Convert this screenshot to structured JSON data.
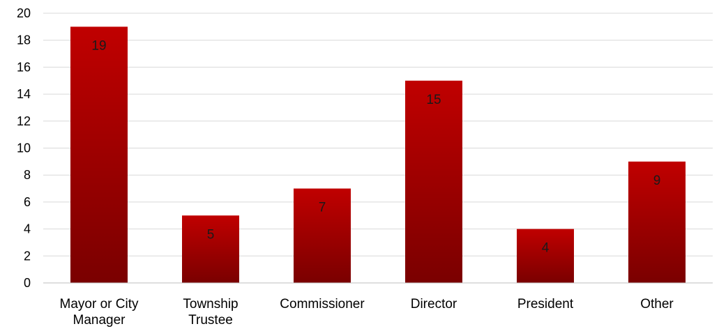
{
  "chart_data": {
    "type": "bar",
    "categories": [
      [
        "Mayor or City",
        "Manager"
      ],
      [
        "Township",
        "Trustee"
      ],
      [
        "Commissioner"
      ],
      [
        "Director"
      ],
      [
        "President"
      ],
      [
        "Other"
      ]
    ],
    "values": [
      19,
      5,
      7,
      15,
      4,
      9
    ],
    "ylim": [
      0,
      20
    ],
    "yticks": [
      0,
      2,
      4,
      6,
      8,
      10,
      12,
      14,
      16,
      18,
      20
    ],
    "grid": true,
    "legend": "none",
    "data_labels": true,
    "bar_color_top": "#c00000",
    "bar_color_bottom": "#7a0000"
  }
}
